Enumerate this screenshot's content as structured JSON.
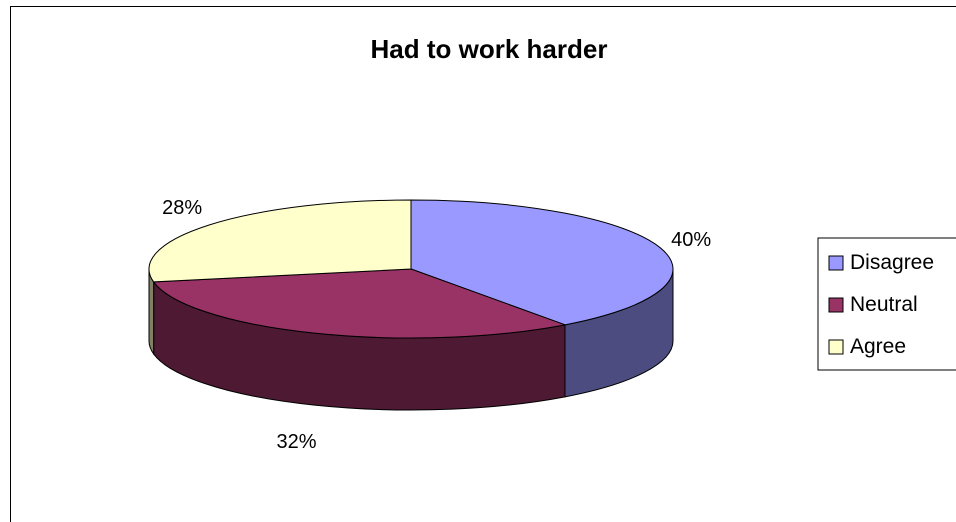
{
  "chart_data": {
    "type": "pie",
    "title": "Had to work harder",
    "categories": [
      "Disagree",
      "Neutral",
      "Agree"
    ],
    "values": [
      40,
      32,
      28
    ],
    "value_labels": [
      "40%",
      "32%",
      "28%"
    ],
    "colors": {
      "Disagree": {
        "top": "#9999ff",
        "side": "#4c4c80"
      },
      "Neutral": {
        "top": "#993366",
        "side": "#4d1933"
      },
      "Agree": {
        "top": "#ffffcc",
        "side": "#808066"
      }
    },
    "style": "3d",
    "legend": {
      "position": "right",
      "entries": [
        "Disagree",
        "Neutral",
        "Agree"
      ]
    }
  }
}
